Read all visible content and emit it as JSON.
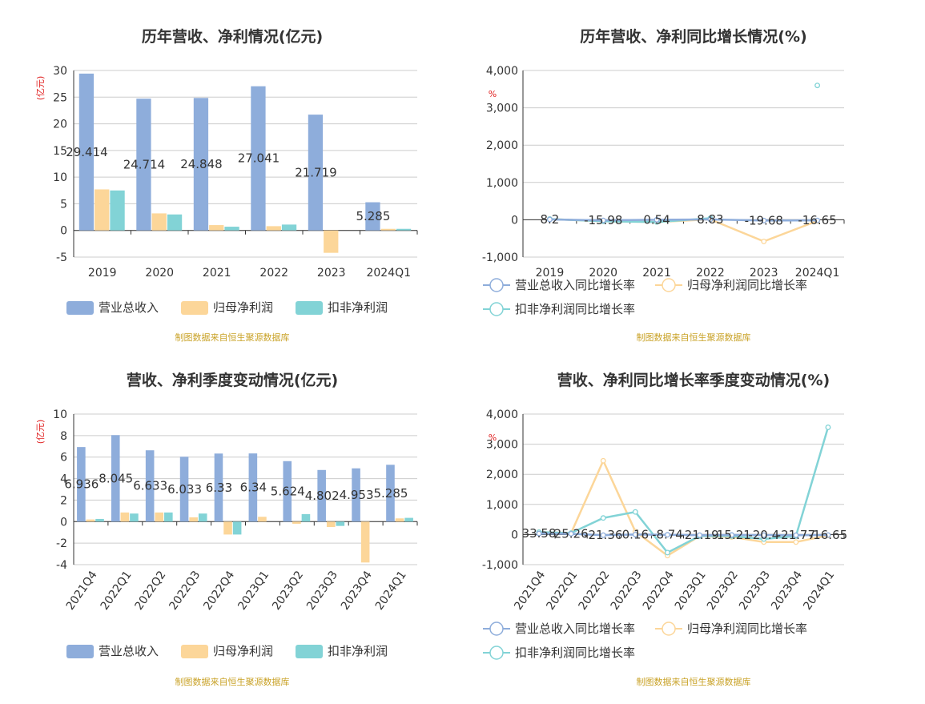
{
  "colors": {
    "revenue": "#8eaddb",
    "net_profit": "#fcd699",
    "deducted_profit": "#82d3d6",
    "grid": "#cccccc",
    "axis": "#333333",
    "text": "#333333",
    "unit_red": "#e02020",
    "source": "#c9a227"
  },
  "source_text": "制图数据来自恒生聚源数据库",
  "chart_data": [
    {
      "type": "bar",
      "title": "历年营收、净利情况(亿元)",
      "ylabel": "(亿元)",
      "categories": [
        "2019",
        "2020",
        "2021",
        "2022",
        "2023",
        "2024Q1"
      ],
      "ylim": [
        -5,
        30
      ],
      "yticks": [
        -5,
        0,
        5,
        10,
        15,
        20,
        25,
        30
      ],
      "series": [
        {
          "name": "营业总收入",
          "values": [
            29.414,
            24.714,
            24.848,
            27.041,
            21.719,
            5.285
          ],
          "labels": [
            "29.414",
            "24.714",
            "24.848",
            "27.041",
            "21.719",
            "5.285"
          ]
        },
        {
          "name": "归母净利润",
          "values": [
            7.7,
            3.2,
            1.0,
            0.8,
            -4.2,
            0.3
          ]
        },
        {
          "name": "扣非净利润",
          "values": [
            7.5,
            3.0,
            0.7,
            1.1,
            0.0,
            0.3
          ]
        }
      ],
      "legend": "bottom"
    },
    {
      "type": "line",
      "title": "历年营收、净利同比增长情况(%)",
      "ylabel": "%",
      "categories": [
        "2019",
        "2020",
        "2021",
        "2022",
        "2023",
        "2024Q1"
      ],
      "ylim": [
        -1000,
        4000
      ],
      "yticks": [
        "-1,000",
        "0",
        "1,000",
        "2,000",
        "3,000",
        "4,000"
      ],
      "ytick_values": [
        -1000,
        0,
        1000,
        2000,
        3000,
        4000
      ],
      "series": [
        {
          "name": "营业总收入同比增长率",
          "values": [
            8.2,
            -15.98,
            0.54,
            8.83,
            -19.68,
            -16.65
          ],
          "labels": [
            "8.2",
            "-15.98",
            "0.54",
            "8.83",
            "-19.68",
            "-16.65"
          ]
        },
        {
          "name": "归母净利润同比增长率",
          "values": [
            20,
            -40,
            -60,
            10,
            -580,
            -30
          ]
        },
        {
          "name": "扣非净利润同比增长率",
          "values": [
            20,
            -40,
            -60,
            40,
            null,
            3600
          ]
        }
      ],
      "legend": "bottom"
    },
    {
      "type": "bar",
      "title": "营收、净利季度变动情况(亿元)",
      "ylabel": "(亿元)",
      "categories": [
        "2021Q4",
        "2022Q1",
        "2022Q2",
        "2022Q3",
        "2022Q4",
        "2023Q1",
        "2023Q2",
        "2023Q3",
        "2023Q4",
        "2024Q1"
      ],
      "ylim": [
        -4,
        10
      ],
      "yticks": [
        -4,
        -2,
        0,
        2,
        4,
        6,
        8,
        10
      ],
      "series": [
        {
          "name": "营业总收入",
          "values": [
            6.936,
            8.045,
            6.633,
            6.033,
            6.33,
            6.34,
            5.624,
            4.802,
            4.953,
            5.285
          ],
          "labels": [
            "6.936",
            "8.045",
            "6.633",
            "6.033",
            "6.33",
            "6.34",
            "5.624",
            "4.802",
            "4.953",
            "5.285"
          ]
        },
        {
          "name": "归母净利润",
          "values": [
            0.2,
            0.85,
            0.85,
            0.4,
            -1.2,
            0.45,
            -0.2,
            -0.5,
            -3.8,
            0.3
          ]
        },
        {
          "name": "扣非净利润",
          "values": [
            0.25,
            0.75,
            0.85,
            0.75,
            -1.2,
            0.0,
            0.7,
            -0.4,
            0.0,
            0.35
          ]
        }
      ],
      "legend": "bottom"
    },
    {
      "type": "line",
      "title": "营收、净利同比增长率季度变动情况(%)",
      "ylabel": "%",
      "categories": [
        "2021Q4",
        "2022Q1",
        "2022Q2",
        "2022Q3",
        "2022Q4",
        "2023Q1",
        "2023Q2",
        "2023Q3",
        "2023Q4",
        "2024Q1"
      ],
      "ylim": [
        -1000,
        4000
      ],
      "yticks": [
        "-1,000",
        "0",
        "1,000",
        "2,000",
        "3,000",
        "4,000"
      ],
      "ytick_values": [
        -1000,
        0,
        1000,
        2000,
        3000,
        4000
      ],
      "series": [
        {
          "name": "营业总收入同比增长率",
          "values": [
            33.58,
            25.26,
            -21.36,
            0.16,
            -8.74,
            -21.19,
            -15.21,
            -20.4,
            -21.77,
            -16.65
          ],
          "labels": [
            "33.58",
            "25.26",
            "-21.36",
            "0.16",
            "-8.74",
            "-21.19",
            "-15.21",
            "-20.4",
            "-21.77",
            "-16.65"
          ]
        },
        {
          "name": "归母净利润同比增长率",
          "values": [
            80,
            50,
            2450,
            100,
            -700,
            -50,
            -80,
            -250,
            -250,
            -30
          ]
        },
        {
          "name": "扣非净利润同比增长率",
          "values": [
            80,
            50,
            550,
            750,
            -600,
            -50,
            -50,
            -150,
            -50,
            3560
          ]
        }
      ],
      "legend": "bottom"
    }
  ]
}
